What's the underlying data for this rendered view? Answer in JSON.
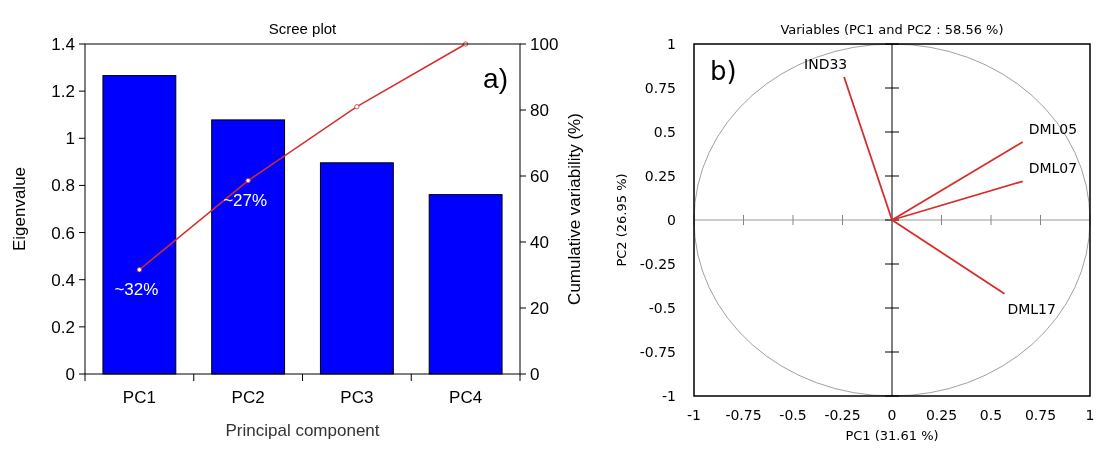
{
  "chart_data": [
    {
      "type": "bar",
      "title": "Scree plot",
      "xlabel": "Principal component",
      "ylabel": "Eigenvalue",
      "y2label": "Cumulative variability (%)",
      "categories": [
        "PC1",
        "PC2",
        "PC3",
        "PC4"
      ],
      "series": [
        {
          "type": "bar",
          "color": "#0000ff",
          "values": [
            1.266,
            1.078,
            0.896,
            0.761
          ]
        },
        {
          "type": "line",
          "axis": "y2",
          "color": "#d92b2b",
          "values": [
            31.6,
            58.6,
            81,
            100
          ]
        }
      ],
      "ylim": [
        0,
        1.4
      ],
      "yticks": [
        0,
        0.2,
        0.4,
        0.6,
        0.8,
        1,
        1.2,
        1.4
      ],
      "y2lim": [
        0,
        100
      ],
      "y2ticks": [
        0,
        20,
        40,
        60,
        80,
        100
      ],
      "marker": "circle",
      "annotations": [
        "~32%",
        "~27%",
        "a)"
      ]
    },
    {
      "type": "line",
      "title": "Variables (PC1 and PC2 : 58.56 %)",
      "xlabel": "PC1 (31.61 %)",
      "ylabel": "PC2 (26.95 %)",
      "series": [
        {
          "name": "IND33",
          "color": "#d92b2b",
          "x": [
            0,
            -0.242
          ],
          "values": [
            0,
            0.812
          ]
        },
        {
          "name": "DML05",
          "color": "#d92b2b",
          "x": [
            0,
            0.66
          ],
          "values": [
            0,
            0.443
          ]
        },
        {
          "name": "DML07",
          "color": "#d92b2b",
          "x": [
            0,
            0.66
          ],
          "values": [
            0,
            0.22
          ]
        },
        {
          "name": "DML17",
          "color": "#d92b2b",
          "x": [
            0,
            0.568
          ],
          "values": [
            0,
            -0.419
          ]
        }
      ],
      "xlim": [
        -1,
        1
      ],
      "xticks": [
        -1,
        -0.75,
        -0.5,
        -0.25,
        0,
        0.25,
        0.5,
        0.75,
        1
      ],
      "ylim": [
        -1,
        1
      ],
      "yticks": [
        -1,
        -0.75,
        -0.5,
        -0.25,
        0,
        0.25,
        0.5,
        0.75,
        1
      ],
      "annotations": [
        "b)"
      ]
    }
  ]
}
